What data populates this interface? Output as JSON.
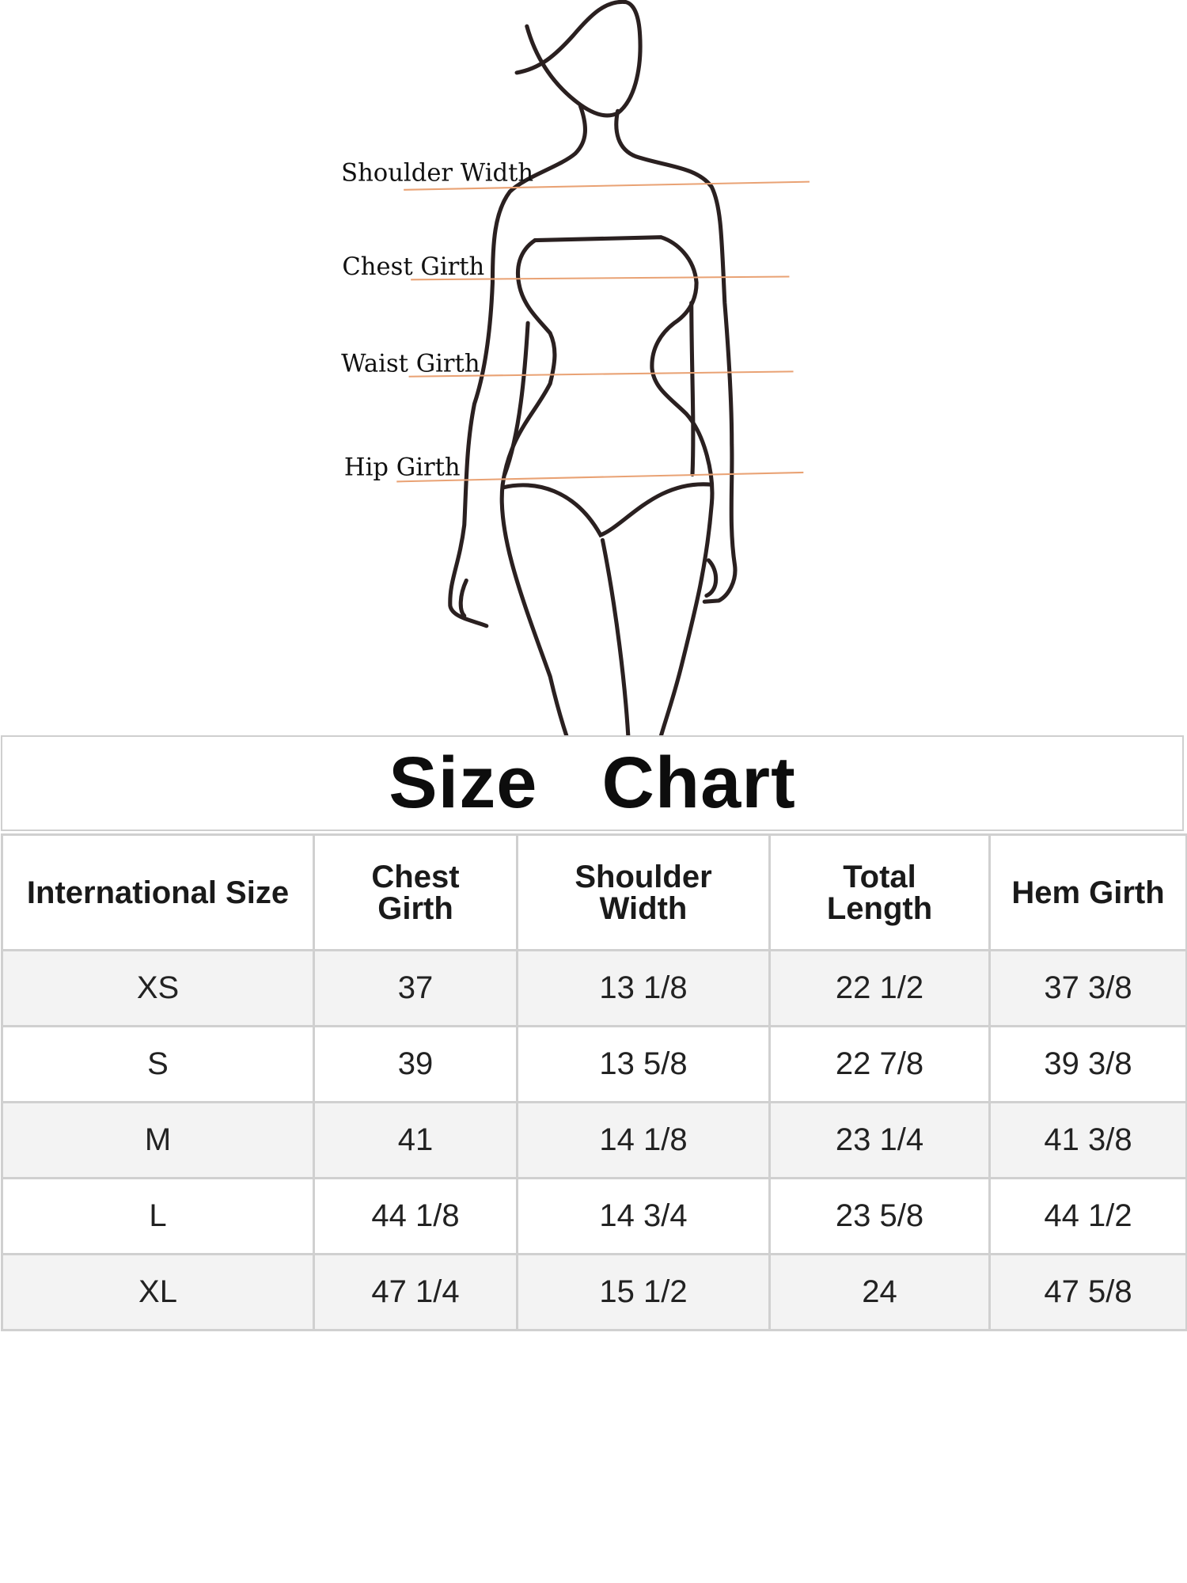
{
  "figure": {
    "labels": [
      "Shoulder Width",
      "Chest Girth",
      "Waist Girth",
      "Hip Girth"
    ],
    "measure_line_color": "#e9a274",
    "outline_color": "#2a2020"
  },
  "title": "Size  Chart",
  "table": {
    "headers": [
      "International Size",
      "Chest Girth",
      "Shoulder Width",
      "Total Length",
      "Hem Girth"
    ],
    "rows": [
      [
        "XS",
        "37",
        "13 1/8",
        "22 1/2",
        "37 3/8"
      ],
      [
        "S",
        "39",
        "13 5/8",
        "22 7/8",
        "39 3/8"
      ],
      [
        "M",
        "41",
        "14 1/8",
        "23 1/4",
        "41 3/8"
      ],
      [
        "L",
        "44 1/8",
        "14 3/4",
        "23 5/8",
        "44 1/2"
      ],
      [
        "XL",
        "47 1/4",
        "15 1/2",
        "24",
        "47 5/8"
      ]
    ],
    "alt_row_color": "#f3f3f3",
    "border_color": "#d0d0d0"
  }
}
